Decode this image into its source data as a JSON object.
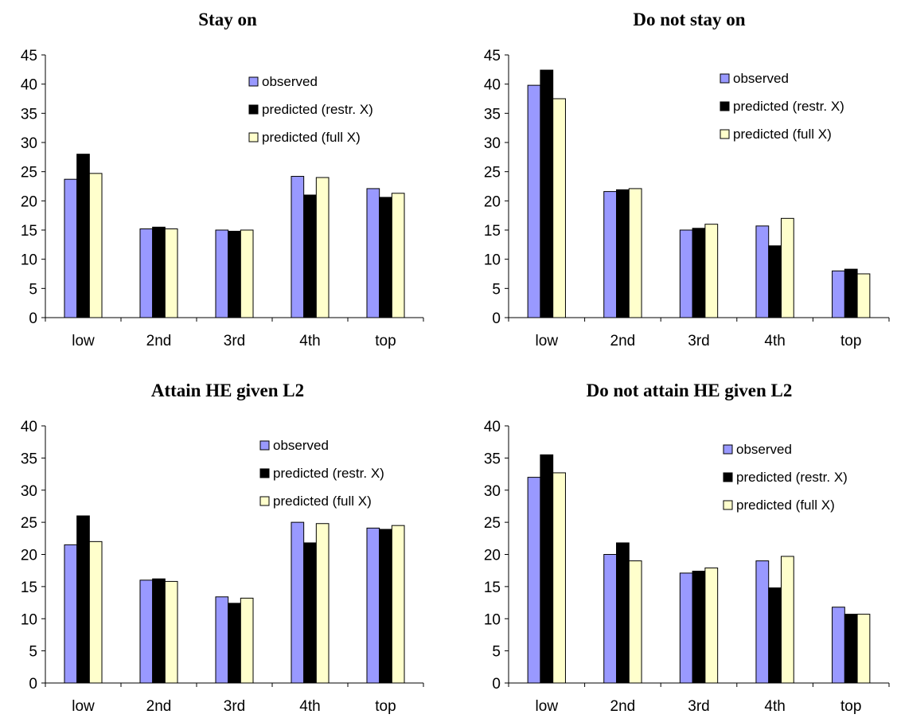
{
  "chart_data": [
    {
      "type": "bar",
      "title": "Stay on",
      "categories": [
        "low",
        "2nd",
        "3rd",
        "4th",
        "top"
      ],
      "ylim": [
        0,
        45
      ],
      "yticks": [
        0,
        5,
        10,
        15,
        20,
        25,
        30,
        35,
        40,
        45
      ],
      "legend_position": "top-right",
      "grid": false,
      "series": [
        {
          "name": "observed",
          "color": "#9999ff",
          "values": [
            23.7,
            15.2,
            15.0,
            24.2,
            22.1
          ]
        },
        {
          "name": "predicted (restr. X)",
          "color": "#000000",
          "values": [
            28.0,
            15.5,
            14.8,
            21.0,
            20.6
          ]
        },
        {
          "name": "predicted (full X)",
          "color": "#ffffcc",
          "values": [
            24.7,
            15.2,
            15.0,
            24.0,
            21.3
          ]
        }
      ]
    },
    {
      "type": "bar",
      "title": "Do not stay on",
      "categories": [
        "low",
        "2nd",
        "3rd",
        "4th",
        "top"
      ],
      "ylim": [
        0,
        45
      ],
      "yticks": [
        0,
        5,
        10,
        15,
        20,
        25,
        30,
        35,
        40,
        45
      ],
      "legend_position": "top-right",
      "grid": false,
      "series": [
        {
          "name": "observed",
          "color": "#9999ff",
          "values": [
            39.8,
            21.6,
            15.0,
            15.7,
            8.0
          ]
        },
        {
          "name": "predicted (restr. X)",
          "color": "#000000",
          "values": [
            42.4,
            21.9,
            15.3,
            12.3,
            8.3
          ]
        },
        {
          "name": "predicted (full X)",
          "color": "#ffffcc",
          "values": [
            37.5,
            22.1,
            16.0,
            17.0,
            7.5
          ]
        }
      ]
    },
    {
      "type": "bar",
      "title": "Attain HE given L2",
      "categories": [
        "low",
        "2nd",
        "3rd",
        "4th",
        "top"
      ],
      "ylim": [
        0,
        40
      ],
      "yticks": [
        0,
        5,
        10,
        15,
        20,
        25,
        30,
        35,
        40
      ],
      "legend_position": "top-right",
      "grid": false,
      "series": [
        {
          "name": "observed",
          "color": "#9999ff",
          "values": [
            21.5,
            16.0,
            13.4,
            25.0,
            24.1
          ]
        },
        {
          "name": "predicted (restr. X)",
          "color": "#000000",
          "values": [
            26.0,
            16.2,
            12.4,
            21.8,
            23.9
          ]
        },
        {
          "name": "predicted (full X)",
          "color": "#ffffcc",
          "values": [
            22.0,
            15.8,
            13.2,
            24.8,
            24.5
          ]
        }
      ]
    },
    {
      "type": "bar",
      "title": "Do not attain HE given L2",
      "categories": [
        "low",
        "2nd",
        "3rd",
        "4th",
        "top"
      ],
      "ylim": [
        0,
        40
      ],
      "yticks": [
        0,
        5,
        10,
        15,
        20,
        25,
        30,
        35,
        40
      ],
      "legend_position": "top-right",
      "grid": false,
      "series": [
        {
          "name": "observed",
          "color": "#9999ff",
          "values": [
            32.0,
            20.0,
            17.1,
            19.0,
            11.8
          ]
        },
        {
          "name": "predicted (restr. X)",
          "color": "#000000",
          "values": [
            35.5,
            21.8,
            17.4,
            14.8,
            10.7
          ]
        },
        {
          "name": "predicted (full X)",
          "color": "#ffffcc",
          "values": [
            32.7,
            19.0,
            17.9,
            19.7,
            10.7
          ]
        }
      ]
    }
  ]
}
